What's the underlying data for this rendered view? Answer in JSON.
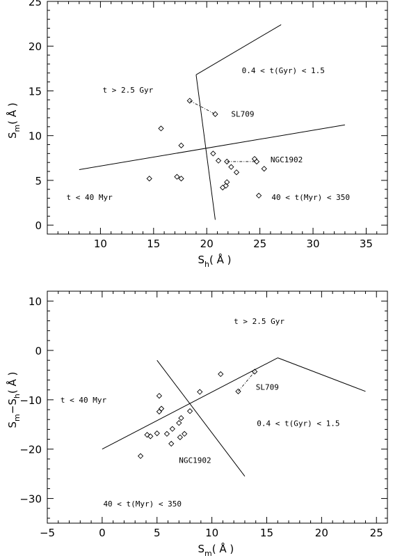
{
  "chart_data": [
    {
      "type": "scatter",
      "xlabel": {
        "main": "S",
        "sub": "h",
        "unit": "( Å )"
      },
      "ylabel": {
        "main": "S",
        "sub": "m",
        "unit": "( Å )"
      },
      "xlim": [
        5,
        37
      ],
      "ylim": [
        -1,
        25
      ],
      "xticks": [
        "10",
        "15",
        "20",
        "25",
        "30",
        "35"
      ],
      "yticks": [
        "0",
        "5",
        "10",
        "15",
        "20",
        "25"
      ],
      "points": [
        [
          14.6,
          5.2
        ],
        [
          15.7,
          10.8
        ],
        [
          17.2,
          5.4
        ],
        [
          17.6,
          5.2
        ],
        [
          17.6,
          8.9
        ],
        [
          18.4,
          13.9
        ],
        [
          20.8,
          12.4
        ],
        [
          20.6,
          8.0
        ],
        [
          21.1,
          7.2
        ],
        [
          21.5,
          4.2
        ],
        [
          21.8,
          4.4
        ],
        [
          21.9,
          4.8
        ],
        [
          21.9,
          7.1
        ],
        [
          22.3,
          6.5
        ],
        [
          22.8,
          5.9
        ],
        [
          24.5,
          7.4
        ],
        [
          24.7,
          7.1
        ],
        [
          24.9,
          3.3
        ],
        [
          25.4,
          6.3
        ]
      ],
      "connectors": [
        [
          [
            18.4,
            13.9
          ],
          [
            20.8,
            12.4
          ]
        ],
        [
          [
            21.9,
            7.1
          ],
          [
            24.5,
            7.1
          ]
        ]
      ],
      "boundary_lines": [
        [
          [
            8,
            6.2
          ],
          [
            33,
            11.2
          ]
        ],
        [
          [
            19,
            16.8
          ],
          [
            20.8,
            0.6
          ]
        ],
        [
          [
            19,
            16.8
          ],
          [
            27,
            22.4
          ]
        ]
      ],
      "annotations": [
        {
          "text": "t > 2.5 Gyr",
          "x": 10.2,
          "y": 14.8
        },
        {
          "text": "0.4 < t(Gyr) < 1.5",
          "x": 23.3,
          "y": 17.0
        },
        {
          "text": "SL709",
          "x": 22.3,
          "y": 12.1
        },
        {
          "text": "NGC1902",
          "x": 26.0,
          "y": 7.0
        },
        {
          "text": "t < 40 Myr",
          "x": 6.8,
          "y": 2.8
        },
        {
          "text": "40 < t(Myr) < 350",
          "x": 26.1,
          "y": 2.8
        }
      ]
    },
    {
      "type": "scatter",
      "xlabel": {
        "main": "S",
        "sub": "m",
        "unit": "( Å )"
      },
      "ylabel": {
        "main": "S",
        "sub": "m",
        "mid": "−S",
        "sub2": "h",
        "unit": "( Å )"
      },
      "xlim": [
        -5,
        26
      ],
      "ylim": [
        -35,
        12
      ],
      "xticks": [
        "−5",
        "0",
        "5",
        "10",
        "15",
        "20",
        "25"
      ],
      "yticks": [
        "−30",
        "−20",
        "−10",
        "0",
        "10"
      ],
      "points": [
        [
          3.5,
          -21.4
        ],
        [
          4.1,
          -17.1
        ],
        [
          4.4,
          -17.4
        ],
        [
          5.0,
          -16.8
        ],
        [
          5.2,
          -9.2
        ],
        [
          5.2,
          -12.4
        ],
        [
          5.4,
          -11.8
        ],
        [
          5.9,
          -16.9
        ],
        [
          6.3,
          -18.9
        ],
        [
          6.4,
          -15.9
        ],
        [
          7.0,
          -14.7
        ],
        [
          7.1,
          -17.6
        ],
        [
          7.2,
          -13.7
        ],
        [
          7.5,
          -16.9
        ],
        [
          8.0,
          -12.3
        ],
        [
          8.9,
          -8.4
        ],
        [
          10.8,
          -4.8
        ],
        [
          12.4,
          -8.3
        ],
        [
          13.9,
          -4.3
        ]
      ],
      "connectors": [
        [
          [
            12.4,
            -8.3
          ],
          [
            13.9,
            -4.3
          ]
        ]
      ],
      "boundary_lines": [
        [
          [
            0,
            -20
          ],
          [
            16,
            -1.5
          ]
        ],
        [
          [
            16,
            -1.5
          ],
          [
            24,
            -8.3
          ]
        ],
        [
          [
            5,
            -2
          ],
          [
            13,
            -25.5
          ]
        ]
      ],
      "annotations": [
        {
          "text": "t > 2.5 Gyr",
          "x": 12.0,
          "y": 5.4
        },
        {
          "text": "t < 40 Myr",
          "x": -3.8,
          "y": -10.6
        },
        {
          "text": "SL709",
          "x": 14.0,
          "y": -8.0
        },
        {
          "text": "0.4 < t(Gyr) < 1.5",
          "x": 14.1,
          "y": -15.3
        },
        {
          "text": "NGC1902",
          "x": 7.0,
          "y": -22.8
        },
        {
          "text": "40 < t(Myr) < 350",
          "x": 0.1,
          "y": -31.6
        }
      ]
    }
  ]
}
